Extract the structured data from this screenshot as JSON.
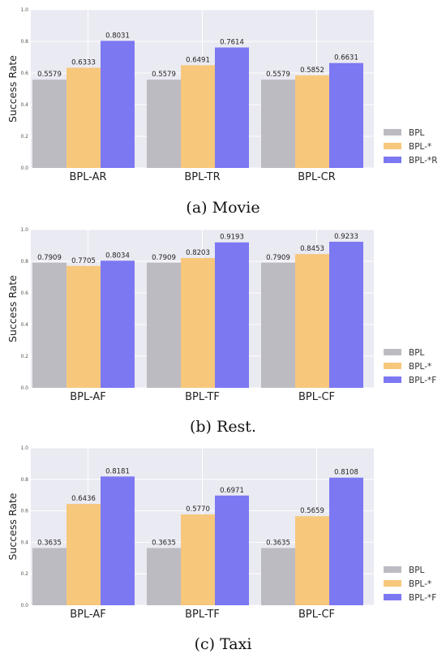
{
  "colors": {
    "BPL": "#bdbbc2",
    "BPL-*": "#f7c77c",
    "BPL-*R": "#7b78f2",
    "BPL-*F": "#7b78f2",
    "plot_bg": "#eaeaf2",
    "grid": "#ffffff"
  },
  "chart_data": [
    {
      "type": "bar",
      "caption": "(a) Movie",
      "ylabel": "Success Rate",
      "ylim": [
        0,
        1.0
      ],
      "yticks": [
        "0.0",
        "0.2",
        "0.4",
        "0.6",
        "0.8",
        "1.0"
      ],
      "categories": [
        "BPL-AR",
        "BPL-TR",
        "BPL-CR"
      ],
      "series": [
        {
          "name": "BPL",
          "values": [
            0.5579,
            0.5579,
            0.5579
          ],
          "labels": [
            "0.5579",
            "0.5579",
            "0.5579"
          ]
        },
        {
          "name": "BPL-*",
          "values": [
            0.6333,
            0.6491,
            0.5852
          ],
          "labels": [
            "0.6333",
            "0.6491",
            "0.5852"
          ]
        },
        {
          "name": "BPL-*R",
          "values": [
            0.8031,
            0.7614,
            0.6631
          ],
          "labels": [
            "0.8031",
            "0.7614",
            "0.6631"
          ]
        }
      ],
      "grid": true,
      "legend_position": "right"
    },
    {
      "type": "bar",
      "caption": "(b) Rest.",
      "ylabel": "Success Rate",
      "ylim": [
        0,
        1.0
      ],
      "yticks": [
        "0.0",
        "0.2",
        "0.4",
        "0.6",
        "0.8",
        "1.0"
      ],
      "categories": [
        "BPL-AF",
        "BPL-TF",
        "BPL-CF"
      ],
      "series": [
        {
          "name": "BPL",
          "values": [
            0.7909,
            0.7909,
            0.7909
          ],
          "labels": [
            "0.7909",
            "0.7909",
            "0.7909"
          ]
        },
        {
          "name": "BPL-*",
          "values": [
            0.7705,
            0.8203,
            0.8453
          ],
          "labels": [
            "0.7705",
            "0.8203",
            "0.8453"
          ]
        },
        {
          "name": "BPL-*F",
          "values": [
            0.8034,
            0.9193,
            0.9233
          ],
          "labels": [
            "0.8034",
            "0.9193",
            "0.9233"
          ]
        }
      ],
      "grid": true,
      "legend_position": "right"
    },
    {
      "type": "bar",
      "caption": "(c) Taxi",
      "ylabel": "Success Rate",
      "ylim": [
        0,
        1.0
      ],
      "yticks": [
        "0.0",
        "0.2",
        "0.4",
        "0.6",
        "0.8",
        "1.0"
      ],
      "categories": [
        "BPL-AF",
        "BPL-TF",
        "BPL-CF"
      ],
      "series": [
        {
          "name": "BPL",
          "values": [
            0.3635,
            0.3635,
            0.3635
          ],
          "labels": [
            "0.3635",
            "0.3635",
            "0.3635"
          ]
        },
        {
          "name": "BPL-*",
          "values": [
            0.6436,
            0.577,
            0.5659
          ],
          "labels": [
            "0.6436",
            "0.5770",
            "0.5659"
          ]
        },
        {
          "name": "BPL-*F",
          "values": [
            0.8181,
            0.6971,
            0.8108
          ],
          "labels": [
            "0.8181",
            "0.6971",
            "0.8108"
          ]
        }
      ],
      "grid": true,
      "legend_position": "right"
    }
  ]
}
